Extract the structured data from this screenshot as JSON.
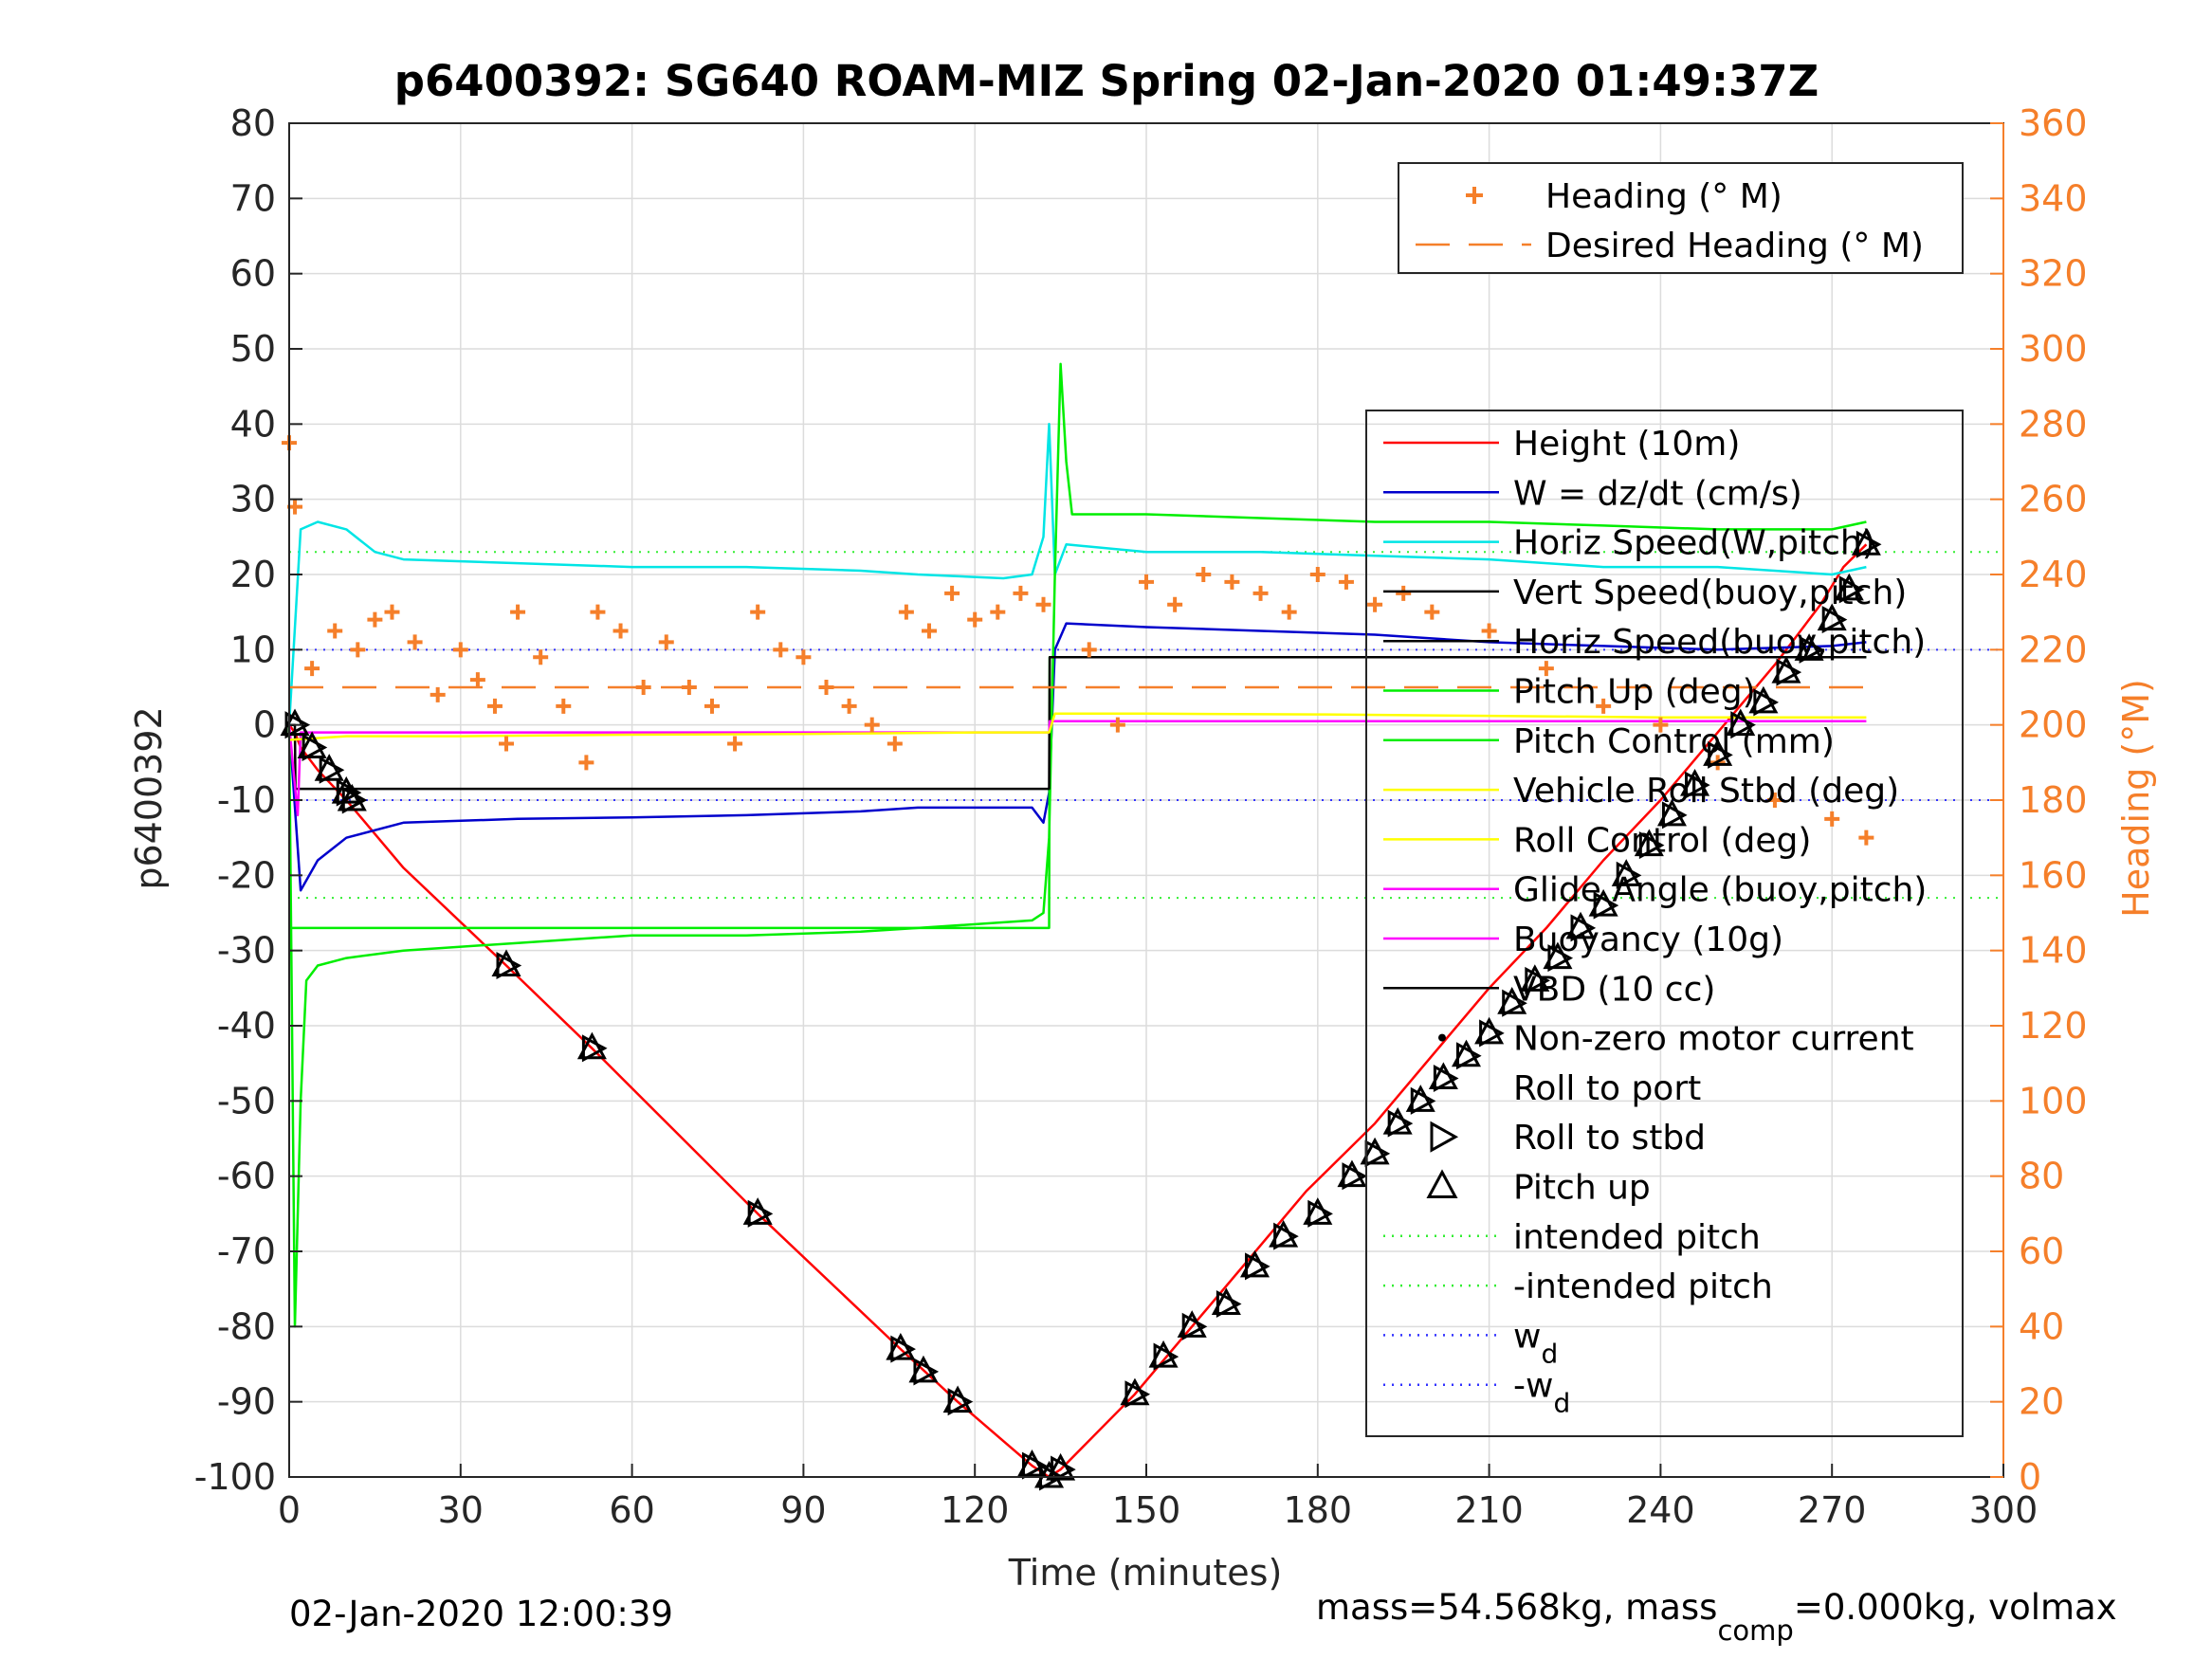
{
  "chart_data": {
    "type": "line",
    "title": "p6400392: SG640 ROAM-MIZ Spring 02-Jan-2020 01:49:37Z",
    "xlabel": "Time (minutes)",
    "ylabel_left": "p6400392",
    "ylabel_right": "Heading (°M)",
    "xlim": [
      0,
      300
    ],
    "ylim_left": [
      -100,
      80
    ],
    "ylim_right": [
      0,
      360
    ],
    "x_ticks": [
      "0",
      "30",
      "60",
      "90",
      "120",
      "150",
      "180",
      "210",
      "240",
      "270",
      "300"
    ],
    "y_left_ticks": [
      "80",
      "70",
      "60",
      "50",
      "40",
      "30",
      "20",
      "10",
      "0",
      "-10",
      "-20",
      "-30",
      "-40",
      "-50",
      "-60",
      "-70",
      "-80",
      "-90",
      "-100"
    ],
    "y_right_ticks": [
      "360",
      "340",
      "320",
      "300",
      "280",
      "260",
      "240",
      "220",
      "200",
      "180",
      "160",
      "140",
      "120",
      "100",
      "80",
      "60",
      "40",
      "20",
      "0"
    ],
    "grid": true,
    "footer_left": "02-Jan-2020 12:00:39",
    "footer_right_prefix": "mass=54.568kg, mass",
    "footer_right_sub": "comp",
    "footer_right_suffix": "=0.000kg, volmax",
    "colors": {
      "height": "#ff0000",
      "w": "#0000cc",
      "horiz": "#00e5e5",
      "pitch": "#00ee00",
      "roll": "#ffff00",
      "glide": "#ff00ff",
      "vbd": "#000000",
      "heading": "#f57f2a",
      "wd": "#3333ff",
      "intended": "#33ee33"
    },
    "heading_legend": [
      {
        "label": "Heading (° M)",
        "marker": "plus"
      },
      {
        "label": "Desired Heading (° M)",
        "marker": "dash"
      }
    ],
    "main_legend": [
      {
        "label": "Height (10m)",
        "marker": "line",
        "color": "#ff0000"
      },
      {
        "label": "W = dz/dt (cm/s)",
        "marker": "line",
        "color": "#0000cc"
      },
      {
        "label": "Horiz Speed(W,pitch)",
        "marker": "line",
        "color": "#00e5e5"
      },
      {
        "label": "Vert Speed(buoy,pitch)",
        "marker": "line",
        "color": "#000000"
      },
      {
        "label": "Horiz Speed(buoy,pitch)",
        "marker": "line",
        "color": "#000000"
      },
      {
        "label": "Pitch Up (deg)",
        "marker": "line",
        "color": "#00ee00"
      },
      {
        "label": "Pitch Control (mm)",
        "marker": "line",
        "color": "#00ee00"
      },
      {
        "label": "Vehicle Roll Stbd (deg)",
        "marker": "line",
        "color": "#ffff00"
      },
      {
        "label": "Roll Control (deg)",
        "marker": "line",
        "color": "#ffff00"
      },
      {
        "label": "Glide Angle (buoy,pitch)",
        "marker": "line",
        "color": "#ff00ff"
      },
      {
        "label": "Buoyancy (10g)",
        "marker": "line",
        "color": "#ff00ff"
      },
      {
        "label": "VBD (10 cc)",
        "marker": "line",
        "color": "#000000"
      },
      {
        "label": "Non-zero motor current",
        "marker": "dot",
        "color": "#000000"
      },
      {
        "label": "Roll to port",
        "marker": "none",
        "color": "#000000"
      },
      {
        "label": "Roll to stbd",
        "marker": "triangle-right",
        "color": "#000000"
      },
      {
        "label": "Pitch up",
        "marker": "triangle-up",
        "color": "#000000"
      },
      {
        "label": "intended pitch",
        "marker": "dotted",
        "color": "#33ee33"
      },
      {
        "label": "-intended pitch",
        "marker": "dotted",
        "color": "#33ee33"
      },
      {
        "label": "w",
        "sub": "d",
        "marker": "dotted",
        "color": "#3333ff"
      },
      {
        "label": "-w",
        "sub": "d",
        "marker": "dotted",
        "color": "#3333ff"
      }
    ],
    "reference_lines": {
      "intended_pitch": 23,
      "w_d": 10,
      "desired_heading": 210
    },
    "series": [
      {
        "name": "Height (10m)",
        "axis": "left",
        "color": "#ff0000",
        "x": [
          0,
          1,
          2,
          5,
          10,
          20,
          38,
          53,
          82,
          107,
          117,
          130,
          133,
          135,
          148,
          158,
          168,
          178,
          190,
          200,
          210,
          220,
          230,
          240,
          250,
          260,
          268,
          272,
          276
        ],
        "y": [
          0,
          -1,
          -3,
          -6,
          -10,
          -19,
          -32,
          -43,
          -65,
          -83,
          -90,
          -98.5,
          -100,
          -99,
          -89,
          -80,
          -71,
          -62,
          -53,
          -44,
          -35,
          -27,
          -18,
          -10,
          -1,
          8,
          16,
          21,
          24
        ]
      },
      {
        "name": "W = dz/dt (cm/s)",
        "axis": "left",
        "color": "#0000cc",
        "x": [
          0,
          2,
          5,
          10,
          20,
          40,
          60,
          80,
          100,
          110,
          130,
          132,
          133,
          134,
          136,
          150,
          170,
          190,
          210,
          230,
          250,
          270,
          276
        ],
        "y": [
          0,
          -22,
          -18,
          -15,
          -13,
          -12.5,
          -12.3,
          -12,
          -11.5,
          -11,
          -11,
          -13,
          -9,
          10,
          13.5,
          13,
          12.5,
          12,
          11,
          10.5,
          10,
          10.5,
          11
        ]
      },
      {
        "name": "Horiz Speed(W,pitch)",
        "axis": "left",
        "color": "#00e5e5",
        "x": [
          0,
          2,
          5,
          10,
          15,
          20,
          40,
          60,
          80,
          100,
          110,
          125,
          130,
          132,
          133,
          134,
          136,
          150,
          170,
          190,
          210,
          230,
          250,
          270,
          276
        ],
        "y": [
          0,
          26,
          27,
          26,
          23,
          22,
          21.5,
          21,
          21,
          20.5,
          20,
          19.5,
          20,
          25,
          40,
          20,
          24,
          23,
          23,
          22.5,
          22,
          21,
          21,
          20,
          21
        ]
      },
      {
        "name": "Pitch Up (deg)",
        "axis": "left",
        "color": "#00ee00",
        "x": [
          0,
          1,
          2,
          3,
          5,
          10,
          20,
          40,
          60,
          80,
          100,
          110,
          130,
          132,
          133,
          134,
          135,
          136,
          137,
          150,
          170,
          190,
          210,
          230,
          250,
          270,
          276
        ],
        "y": [
          0,
          -80,
          -50,
          -34,
          -32,
          -31,
          -30,
          -29,
          -28,
          -28,
          -27.5,
          -27,
          -26,
          -25,
          -15,
          20,
          48,
          35,
          28,
          28,
          27.5,
          27,
          27,
          26.5,
          26,
          26,
          27
        ]
      },
      {
        "name": "Pitch Control (mm)",
        "axis": "left",
        "color": "#00ee00",
        "x": [
          0,
          133,
          133.1,
          276
        ],
        "y": [
          -27,
          -27,
          9,
          9
        ]
      },
      {
        "name": "VBD (10 cc)",
        "axis": "left",
        "color": "#000000",
        "x": [
          0,
          1,
          1.1,
          132,
          133,
          133.1,
          276
        ],
        "y": [
          0,
          0,
          -8.5,
          -8.5,
          -8.5,
          9,
          9
        ]
      },
      {
        "name": "Buoyancy (10g)",
        "axis": "left",
        "color": "#ff00ff",
        "x": [
          0,
          1.5,
          2,
          133,
          133.1,
          276
        ],
        "y": [
          0,
          -12,
          -1,
          -1,
          0.5,
          0.5
        ]
      },
      {
        "name": "Vehicle Roll Stbd (deg)",
        "axis": "left",
        "color": "#ffff00",
        "x": [
          0,
          10,
          30,
          60,
          90,
          120,
          133,
          134,
          150,
          180,
          210,
          240,
          270,
          276
        ],
        "y": [
          -2,
          -1.5,
          -1.5,
          -1.3,
          -1.2,
          -1.0,
          -1.0,
          1.5,
          1.5,
          1.4,
          1.2,
          1.0,
          1.0,
          1.0
        ]
      },
      {
        "name": "Heading (° M)",
        "axis": "right",
        "color": "#f57f2a",
        "x": [
          0,
          1,
          4,
          8,
          12,
          15,
          18,
          22,
          26,
          30,
          33,
          36,
          38,
          40,
          44,
          48,
          52,
          54,
          58,
          62,
          66,
          70,
          74,
          78,
          82,
          86,
          90,
          94,
          98,
          102,
          106,
          108,
          112,
          116,
          120,
          124,
          128,
          132,
          140,
          145,
          150,
          155,
          160,
          165,
          170,
          175,
          180,
          185,
          190,
          195,
          200,
          210,
          220,
          230,
          240,
          250,
          260,
          270,
          276
        ],
        "y": [
          275,
          258,
          215,
          225,
          220,
          228,
          230,
          222,
          208,
          220,
          212,
          205,
          195,
          230,
          218,
          205,
          190,
          230,
          225,
          210,
          222,
          210,
          205,
          195,
          230,
          220,
          218,
          210,
          205,
          200,
          195,
          230,
          225,
          235,
          228,
          230,
          235,
          232,
          220,
          200,
          238,
          232,
          240,
          238,
          235,
          230,
          240,
          238,
          232,
          235,
          230,
          225,
          215,
          205,
          200,
          190,
          180,
          175,
          170
        ]
      },
      {
        "name": "Desired Heading (° M)",
        "axis": "right",
        "color": "#f57f2a",
        "x": [
          0,
          276
        ],
        "y": [
          210,
          210
        ]
      }
    ],
    "pitch_up_markers": {
      "x": [
        1,
        4,
        7,
        10,
        11,
        38,
        53,
        82,
        107,
        111,
        117,
        130,
        133,
        135,
        148,
        153,
        158,
        164,
        169,
        174,
        180,
        186,
        190,
        194,
        198,
        202,
        206,
        210,
        214,
        218,
        222,
        226,
        230,
        234,
        238,
        242,
        246,
        250,
        254,
        258,
        262,
        266,
        270,
        273,
        276
      ],
      "y": [
        0,
        -3,
        -6,
        -9,
        -10,
        -32,
        -43,
        -65,
        -83,
        -86,
        -90,
        -98.5,
        -100,
        -99,
        -89,
        -84,
        -80,
        -77,
        -72,
        -68,
        -65,
        -60,
        -57,
        -53,
        -50,
        -47,
        -44,
        -41,
        -37,
        -34,
        -31,
        -27,
        -24,
        -20,
        -16,
        -12,
        -8,
        -4,
        0,
        3,
        7,
        10,
        14,
        18,
        24
      ]
    }
  }
}
